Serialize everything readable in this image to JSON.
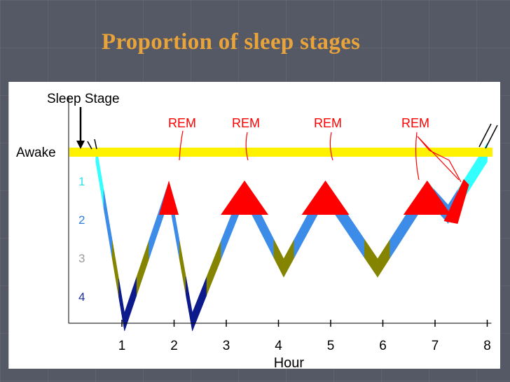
{
  "title": "Proportion of sleep stages",
  "chart_data": {
    "type": "line",
    "ylabel": "Sleep Stage",
    "xlabel": "Hour",
    "xlim": [
      0,
      8
    ],
    "x_ticks": [
      "1",
      "2",
      "3",
      "4",
      "5",
      "6",
      "7",
      "8"
    ],
    "y_levels": [
      {
        "label": "Awake",
        "value": 0,
        "color": "#000000"
      },
      {
        "label": "1",
        "value": 1,
        "color": "#33E0E6"
      },
      {
        "label": "2",
        "value": 2,
        "color": "#2F7FE3"
      },
      {
        "label": "3",
        "value": 3,
        "color": "#9A9A9A"
      },
      {
        "label": "4",
        "value": 4,
        "color": "#1E2D96"
      }
    ],
    "band_colors": {
      "1": "#33FFFF",
      "2": "#3C8CE8",
      "3": "#848400",
      "4": "#0D1A8C",
      "REM": "#FF0000",
      "awake_line": "#FFF200"
    },
    "hypnogram": [
      {
        "x": 0.5,
        "y": 0
      },
      {
        "x": 1.05,
        "y": 4.4
      },
      {
        "x": 1.9,
        "y": 1.0
      },
      {
        "x": 2.35,
        "y": 4.4
      },
      {
        "x": 3.35,
        "y": 1.0
      },
      {
        "x": 4.1,
        "y": 3.0
      },
      {
        "x": 4.9,
        "y": 1.0
      },
      {
        "x": 5.9,
        "y": 3.0
      },
      {
        "x": 6.85,
        "y": 1.0
      },
      {
        "x": 7.25,
        "y": 1.6
      },
      {
        "x": 8.0,
        "y": 0
      }
    ],
    "rem_labels": [
      {
        "text": "REM",
        "x": 1.9
      },
      {
        "text": "REM",
        "x": 3.35
      },
      {
        "text": "REM",
        "x": 4.9
      },
      {
        "text": "REM",
        "x": 6.65
      }
    ]
  }
}
